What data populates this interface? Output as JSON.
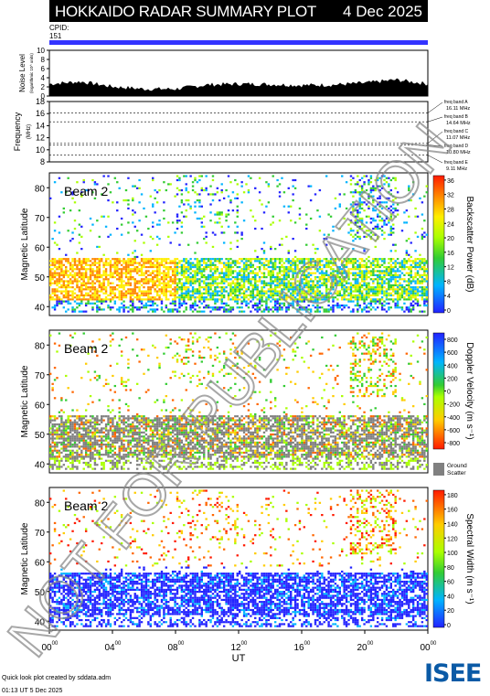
{
  "header": {
    "title": "HOKKAIDO RADAR SUMMARY PLOT",
    "date": "4 Dec 2025"
  },
  "cpid": {
    "label": "CPID:",
    "value": "151"
  },
  "noise_panel": {
    "ylabel": "Noise Level",
    "ylabel_sub": "(logarithmic 10^ units)",
    "yticks": [
      "0",
      "2",
      "4",
      "6",
      "8",
      "10"
    ]
  },
  "freq_panel": {
    "ylabel": "Frequency",
    "unit": "(MHz)",
    "yticks": [
      "8",
      "10",
      "12",
      "14",
      "16",
      "18"
    ],
    "bands": [
      {
        "name": "freq band A",
        "value": "16.11 MHz"
      },
      {
        "name": "freq band B",
        "value": "14.64 MHz"
      },
      {
        "name": "freq band C",
        "value": "11.07 MHz"
      },
      {
        "name": "freq band D",
        "value": "10.80 MHz"
      },
      {
        "name": "freq band E",
        "value": "9.11 MHz"
      }
    ]
  },
  "main_panels": [
    {
      "beam": "Beam 2",
      "ylabel": "Magnetic Latitude",
      "cb_label": "Backscatter Power (dB)",
      "cb_ticks": [
        "0",
        "4",
        "8",
        "12",
        "16",
        "20",
        "24",
        "28",
        "32",
        "36"
      ]
    },
    {
      "beam": "Beam 2",
      "ylabel": "Magnetic Latitude",
      "cb_label": "Doppler Velocity (m s⁻¹)",
      "cb_ticks": [
        "800",
        "600",
        "400",
        "200",
        "0",
        "-200",
        "-400",
        "-600",
        "-800"
      ],
      "ground_label_1": "Ground",
      "ground_label_2": "Scatter"
    },
    {
      "beam": "Beam 2",
      "ylabel": "Magnetic Latitude",
      "cb_label": "Spectral Width (m s⁻¹)",
      "cb_ticks": [
        "0",
        "20",
        "40",
        "60",
        "80",
        "100",
        "120",
        "140",
        "160",
        "180"
      ]
    }
  ],
  "lat_ticks": [
    "40",
    "50",
    "60",
    "70",
    "80"
  ],
  "x_axis": {
    "label": "UT",
    "ticks": [
      "00",
      "04",
      "08",
      "12",
      "16",
      "20",
      "00"
    ],
    "tick_sup": "00"
  },
  "watermark": "NOT FOR PUBLICATION",
  "footer": {
    "line1": "Quick look plot created by sddata.adm",
    "line2": "01:13 UT 5 Dec 2025"
  },
  "logo": {
    "text": "ISEE"
  },
  "colors": {
    "cpid_bar": "#3333ff",
    "ground_scatter": "#808080",
    "header_bg": "#000000"
  },
  "chart_data": [
    {
      "type": "area",
      "title": "Noise Level",
      "x": [
        0,
        2,
        4,
        6,
        8,
        10,
        12,
        14,
        16,
        18,
        20,
        22,
        24
      ],
      "values": [
        2.6,
        3.1,
        2.0,
        1.5,
        1.5,
        2.4,
        2.6,
        2.5,
        2.3,
        2.4,
        2.8,
        3.5,
        2.6
      ],
      "xlabel": "UT",
      "ylim": [
        0,
        10
      ]
    },
    {
      "type": "line",
      "title": "Frequency",
      "series": [
        {
          "name": "16.11 MHz",
          "values": [
            16.11
          ]
        },
        {
          "name": "14.64 MHz",
          "values": [
            14.64
          ]
        },
        {
          "name": "11.07 MHz",
          "values": [
            11.07
          ]
        },
        {
          "name": "10.80 MHz",
          "values": [
            10.8
          ]
        },
        {
          "name": "9.11 MHz",
          "values": [
            9.11
          ]
        }
      ],
      "ylim": [
        8,
        18
      ]
    },
    {
      "type": "heatmap",
      "title": "Backscatter Power (dB)",
      "beam": "Beam 2",
      "xlabel": "UT",
      "ylabel": "Magnetic Latitude",
      "xlim": [
        0,
        24
      ],
      "ylim": [
        37,
        85
      ],
      "zlim": [
        0,
        36
      ]
    },
    {
      "type": "heatmap",
      "title": "Doppler Velocity (m s⁻¹)",
      "beam": "Beam 2",
      "xlabel": "UT",
      "ylabel": "Magnetic Latitude",
      "xlim": [
        0,
        24
      ],
      "ylim": [
        37,
        85
      ],
      "zlim": [
        -800,
        800
      ]
    },
    {
      "type": "heatmap",
      "title": "Spectral Width (m s⁻¹)",
      "beam": "Beam 2",
      "xlabel": "UT",
      "ylabel": "Magnetic Latitude",
      "xlim": [
        0,
        24
      ],
      "ylim": [
        37,
        85
      ],
      "zlim": [
        0,
        180
      ]
    }
  ]
}
